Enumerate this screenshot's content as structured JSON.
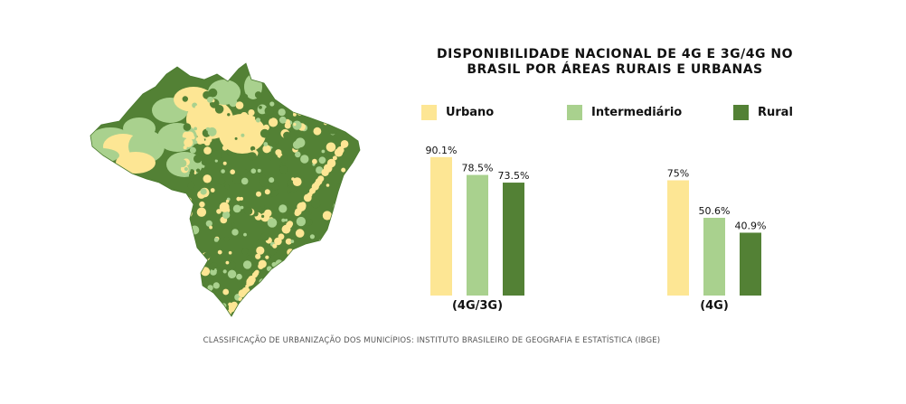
{
  "title_line1": "DISPONIBILIDADE NACIONAL DE 4G E 3G/4G NO",
  "title_line2": "BRASIL POR ÁREAS RURAIS E URBANAS",
  "caption": "CLASSIFICAÇÃO DE URBANIZAÇÃO DOS MUNICÍPIOS: INSTITUTO BRASILEIRO DE GEOGRAFIA E ESTATÍSTICA (IBGE)",
  "colors": {
    "urbano": "#fde694",
    "intermediario": "#a9d18e",
    "rural": "#538135"
  },
  "legend": [
    {
      "label": "Urbano",
      "color_key": "urbano"
    },
    {
      "label": "Intermediário",
      "color_key": "intermediario"
    },
    {
      "label": "Rural",
      "color_key": "rural"
    }
  ],
  "map": {
    "icon": "brazil-urbanization-map"
  },
  "chart_data": {
    "type": "bar",
    "categories": [
      "(4G/3G)",
      "(4G)"
    ],
    "series": [
      {
        "name": "Urbano",
        "values": [
          90.1,
          75
        ],
        "labels": [
          "90.1%",
          "75%"
        ]
      },
      {
        "name": "Intermediário",
        "values": [
          78.5,
          50.6
        ],
        "labels": [
          "78.5%",
          "50.6%"
        ]
      },
      {
        "name": "Rural",
        "values": [
          73.5,
          40.9
        ],
        "labels": [
          "73.5%",
          "40.9%"
        ]
      }
    ],
    "ylim": [
      0,
      100
    ],
    "xlabel": "",
    "ylabel": "",
    "grid": false,
    "legend_position": "top"
  }
}
